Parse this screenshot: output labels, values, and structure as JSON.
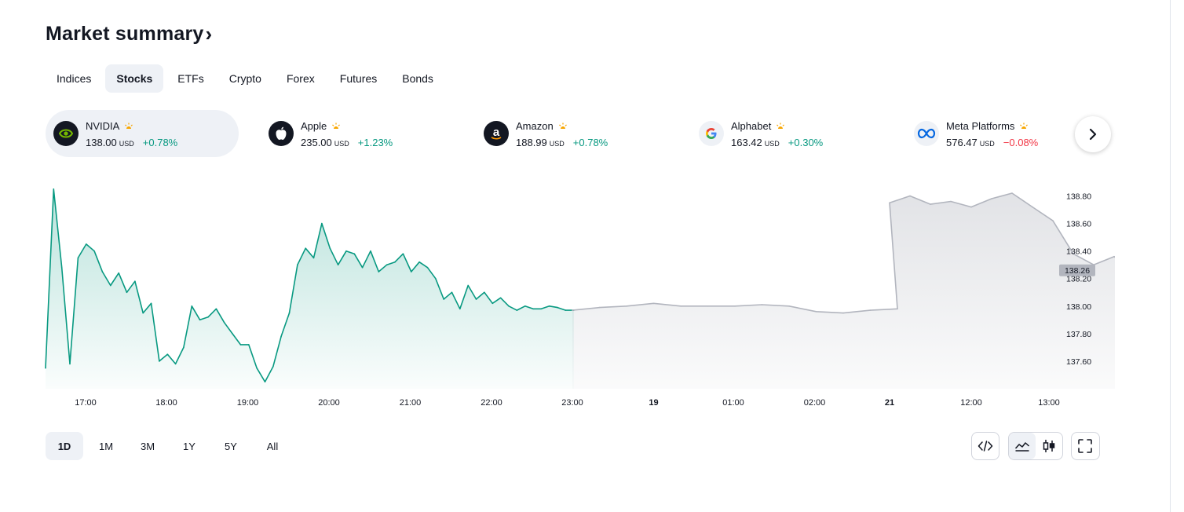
{
  "header": {
    "title": "Market summary",
    "chevron": "›"
  },
  "tabs": [
    {
      "label": "Indices",
      "active": false
    },
    {
      "label": "Stocks",
      "active": true
    },
    {
      "label": "ETFs",
      "active": false
    },
    {
      "label": "Crypto",
      "active": false
    },
    {
      "label": "Forex",
      "active": false
    },
    {
      "label": "Futures",
      "active": false
    },
    {
      "label": "Bonds",
      "active": false
    }
  ],
  "tickers": [
    {
      "name": "NVIDIA",
      "price": "138.00",
      "currency": "USD",
      "change": "+0.78%",
      "direction": "up",
      "icon": "nvidia-logo",
      "active": true
    },
    {
      "name": "Apple",
      "price": "235.00",
      "currency": "USD",
      "change": "+1.23%",
      "direction": "up",
      "icon": "apple-logo",
      "active": false
    },
    {
      "name": "Amazon",
      "price": "188.99",
      "currency": "USD",
      "change": "+0.78%",
      "direction": "up",
      "icon": "amazon-logo",
      "active": false
    },
    {
      "name": "Alphabet",
      "price": "163.42",
      "currency": "USD",
      "change": "+0.30%",
      "direction": "up",
      "icon": "google-logo",
      "active": false
    },
    {
      "name": "Meta Platforms",
      "price": "576.47",
      "currency": "USD",
      "change": "−0.08%",
      "direction": "down",
      "icon": "meta-logo",
      "active": false
    }
  ],
  "market_status_icon": "sun-icon",
  "next_button_icon": "chevron-right-icon",
  "chart_data": {
    "type": "area",
    "title": "",
    "x_tick_labels": [
      "17:00",
      "18:00",
      "19:00",
      "20:00",
      "21:00",
      "22:00",
      "23:00",
      "19",
      "01:00",
      "02:00",
      "21",
      "12:00",
      "13:00"
    ],
    "y_tick_labels": [
      "138.80",
      "138.60",
      "138.40",
      "138.20",
      "138.00",
      "137.80",
      "137.60"
    ],
    "ylim": [
      137.4,
      138.9
    ],
    "last_price_label": "138.26",
    "grid": false,
    "colors": {
      "regular_session": "#089981",
      "extended_session": "#b2b5be",
      "price_tag_bg": "#b2b5be"
    },
    "series": [
      {
        "name": "",
        "session": "regular",
        "x": [
          "16:30",
          "16:36",
          "16:42",
          "16:48",
          "16:54",
          "17:00",
          "17:06",
          "17:12",
          "17:18",
          "17:24",
          "17:30",
          "17:36",
          "17:42",
          "17:48",
          "17:54",
          "18:00",
          "18:06",
          "18:12",
          "18:18",
          "18:24",
          "18:30",
          "18:36",
          "18:42",
          "18:48",
          "18:54",
          "19:00",
          "19:06",
          "19:12",
          "19:18",
          "19:24",
          "19:30",
          "19:36",
          "19:42",
          "19:48",
          "19:54",
          "20:00",
          "20:06",
          "20:12",
          "20:18",
          "20:24",
          "20:30",
          "20:36",
          "20:42",
          "20:48",
          "20:54",
          "21:00",
          "21:06",
          "21:12",
          "21:18",
          "21:24",
          "21:30",
          "21:36",
          "21:42",
          "21:48",
          "21:54",
          "22:00",
          "22:06",
          "22:12",
          "22:18",
          "22:24",
          "22:30",
          "22:36",
          "22:42",
          "22:48",
          "22:54",
          "23:00"
        ],
        "values": [
          137.55,
          138.85,
          138.28,
          137.58,
          138.35,
          138.45,
          138.4,
          138.25,
          138.15,
          138.24,
          138.1,
          138.18,
          137.95,
          138.02,
          137.6,
          137.65,
          137.58,
          137.7,
          138.0,
          137.9,
          137.92,
          137.98,
          137.88,
          137.8,
          137.72,
          137.72,
          137.55,
          137.45,
          137.56,
          137.78,
          137.95,
          138.3,
          138.42,
          138.35,
          138.6,
          138.42,
          138.3,
          138.4,
          138.38,
          138.28,
          138.4,
          138.25,
          138.3,
          138.32,
          138.38,
          138.25,
          138.32,
          138.28,
          138.2,
          138.05,
          138.1,
          137.98,
          138.15,
          138.05,
          138.1,
          138.02,
          138.06,
          138.0,
          137.97,
          138.0,
          137.98,
          137.98,
          138.0,
          137.99,
          137.97,
          137.97
        ]
      },
      {
        "name": "",
        "session": "extended",
        "x": [
          "23:00",
          "23:20",
          "23:40",
          "00:00",
          "00:20",
          "00:40",
          "01:00",
          "01:20",
          "01:40",
          "02:00",
          "02:20",
          "02:40",
          "03:00",
          "10:00",
          "10:15",
          "10:30",
          "10:45",
          "11:00",
          "11:15",
          "11:30",
          "11:45",
          "12:00",
          "12:15",
          "12:30",
          "12:45",
          "13:00"
        ],
        "values": [
          137.97,
          137.99,
          138.0,
          138.02,
          138.0,
          138.0,
          138.0,
          138.01,
          138.0,
          137.96,
          137.95,
          137.97,
          137.98,
          138.75,
          138.8,
          138.74,
          138.76,
          138.72,
          138.78,
          138.82,
          138.72,
          138.62,
          138.38,
          138.3,
          138.36,
          138.26
        ]
      }
    ]
  },
  "ranges": [
    {
      "label": "1D",
      "active": true
    },
    {
      "label": "1M",
      "active": false
    },
    {
      "label": "3M",
      "active": false
    },
    {
      "label": "1Y",
      "active": false
    },
    {
      "label": "5Y",
      "active": false
    },
    {
      "label": "All",
      "active": false
    }
  ],
  "tools": {
    "embed_icon": "code-icon",
    "area_icon": "area-chart-icon",
    "candles_icon": "candlestick-icon",
    "fullscreen_icon": "fullscreen-icon"
  }
}
